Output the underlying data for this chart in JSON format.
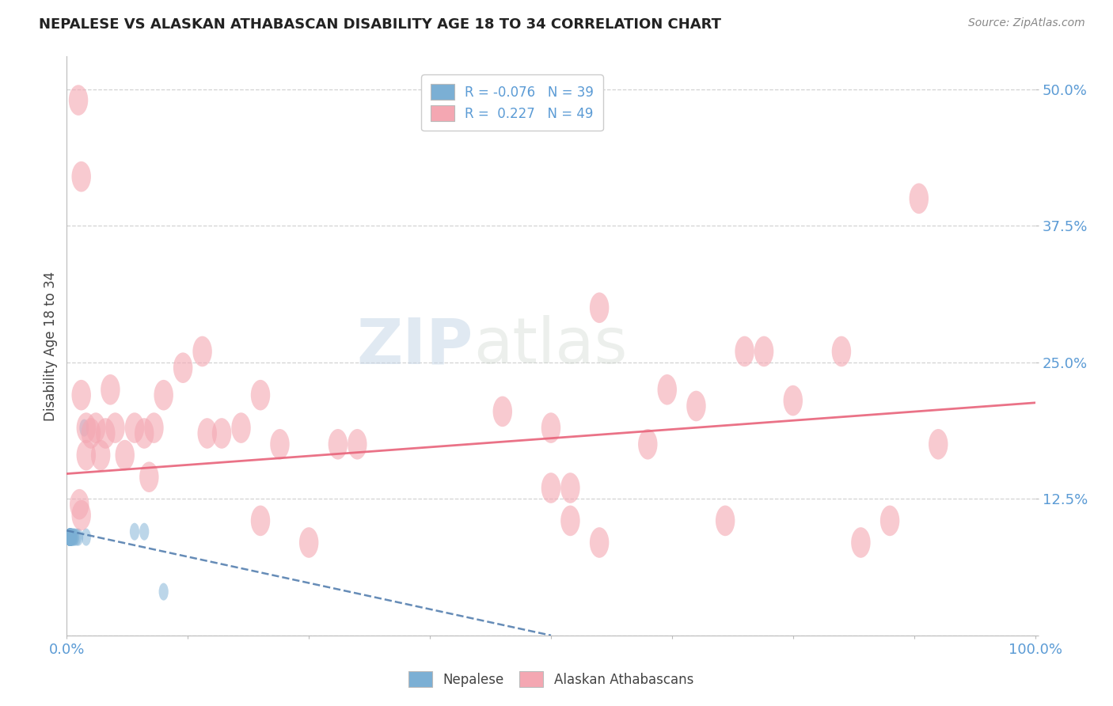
{
  "title": "NEPALESE VS ALASKAN ATHABASCAN DISABILITY AGE 18 TO 34 CORRELATION CHART",
  "source": "Source: ZipAtlas.com",
  "ylabel": "Disability Age 18 to 34",
  "xlim": [
    0.0,
    1.0
  ],
  "ylim": [
    0.0,
    0.53
  ],
  "yticks": [
    0.0,
    0.125,
    0.25,
    0.375,
    0.5
  ],
  "ytick_labels": [
    "",
    "12.5%",
    "25.0%",
    "37.5%",
    "50.0%"
  ],
  "nepalese_color": "#7bafd4",
  "athabascan_color": "#f4a7b2",
  "nepalese_line_color": "#5580b0",
  "athabascan_line_color": "#e8637a",
  "background_color": "#ffffff",
  "watermark_zip": "ZIP",
  "watermark_atlas": "atlas",
  "nepalese_x": [
    0.003,
    0.003,
    0.003,
    0.003,
    0.003,
    0.003,
    0.003,
    0.003,
    0.003,
    0.003,
    0.003,
    0.003,
    0.003,
    0.003,
    0.003,
    0.003,
    0.003,
    0.003,
    0.003,
    0.003,
    0.004,
    0.004,
    0.004,
    0.004,
    0.004,
    0.004,
    0.005,
    0.005,
    0.005,
    0.006,
    0.007,
    0.008,
    0.01,
    0.012,
    0.018,
    0.02,
    0.07,
    0.08,
    0.1
  ],
  "nepalese_y": [
    0.09,
    0.09,
    0.09,
    0.09,
    0.09,
    0.09,
    0.09,
    0.09,
    0.09,
    0.09,
    0.09,
    0.09,
    0.09,
    0.09,
    0.09,
    0.09,
    0.09,
    0.09,
    0.09,
    0.09,
    0.09,
    0.09,
    0.09,
    0.09,
    0.09,
    0.09,
    0.09,
    0.09,
    0.09,
    0.09,
    0.09,
    0.09,
    0.09,
    0.09,
    0.19,
    0.09,
    0.095,
    0.095,
    0.04
  ],
  "athabascan_x": [
    0.012,
    0.015,
    0.015,
    0.02,
    0.02,
    0.025,
    0.03,
    0.035,
    0.04,
    0.045,
    0.05,
    0.06,
    0.07,
    0.08,
    0.085,
    0.09,
    0.1,
    0.12,
    0.14,
    0.145,
    0.16,
    0.18,
    0.2,
    0.22,
    0.28,
    0.3,
    0.45,
    0.5,
    0.52,
    0.55,
    0.6,
    0.62,
    0.65,
    0.68,
    0.7,
    0.72,
    0.75,
    0.8,
    0.82,
    0.85,
    0.88,
    0.9,
    0.5,
    0.52,
    0.55,
    0.2,
    0.25,
    0.013,
    0.015
  ],
  "athabascan_y": [
    0.49,
    0.42,
    0.22,
    0.19,
    0.165,
    0.185,
    0.19,
    0.165,
    0.185,
    0.225,
    0.19,
    0.165,
    0.19,
    0.185,
    0.145,
    0.19,
    0.22,
    0.245,
    0.26,
    0.185,
    0.185,
    0.19,
    0.22,
    0.175,
    0.175,
    0.175,
    0.205,
    0.19,
    0.135,
    0.3,
    0.175,
    0.225,
    0.21,
    0.105,
    0.26,
    0.26,
    0.215,
    0.26,
    0.085,
    0.105,
    0.4,
    0.175,
    0.135,
    0.105,
    0.085,
    0.105,
    0.085,
    0.12,
    0.11
  ],
  "nep_trend_x0": 0.0,
  "nep_trend_y0": 0.096,
  "nep_trend_x1": 0.5,
  "nep_trend_y1": 0.0,
  "ath_trend_x0": 0.0,
  "ath_trend_y0": 0.148,
  "ath_trend_x1": 1.0,
  "ath_trend_y1": 0.213
}
